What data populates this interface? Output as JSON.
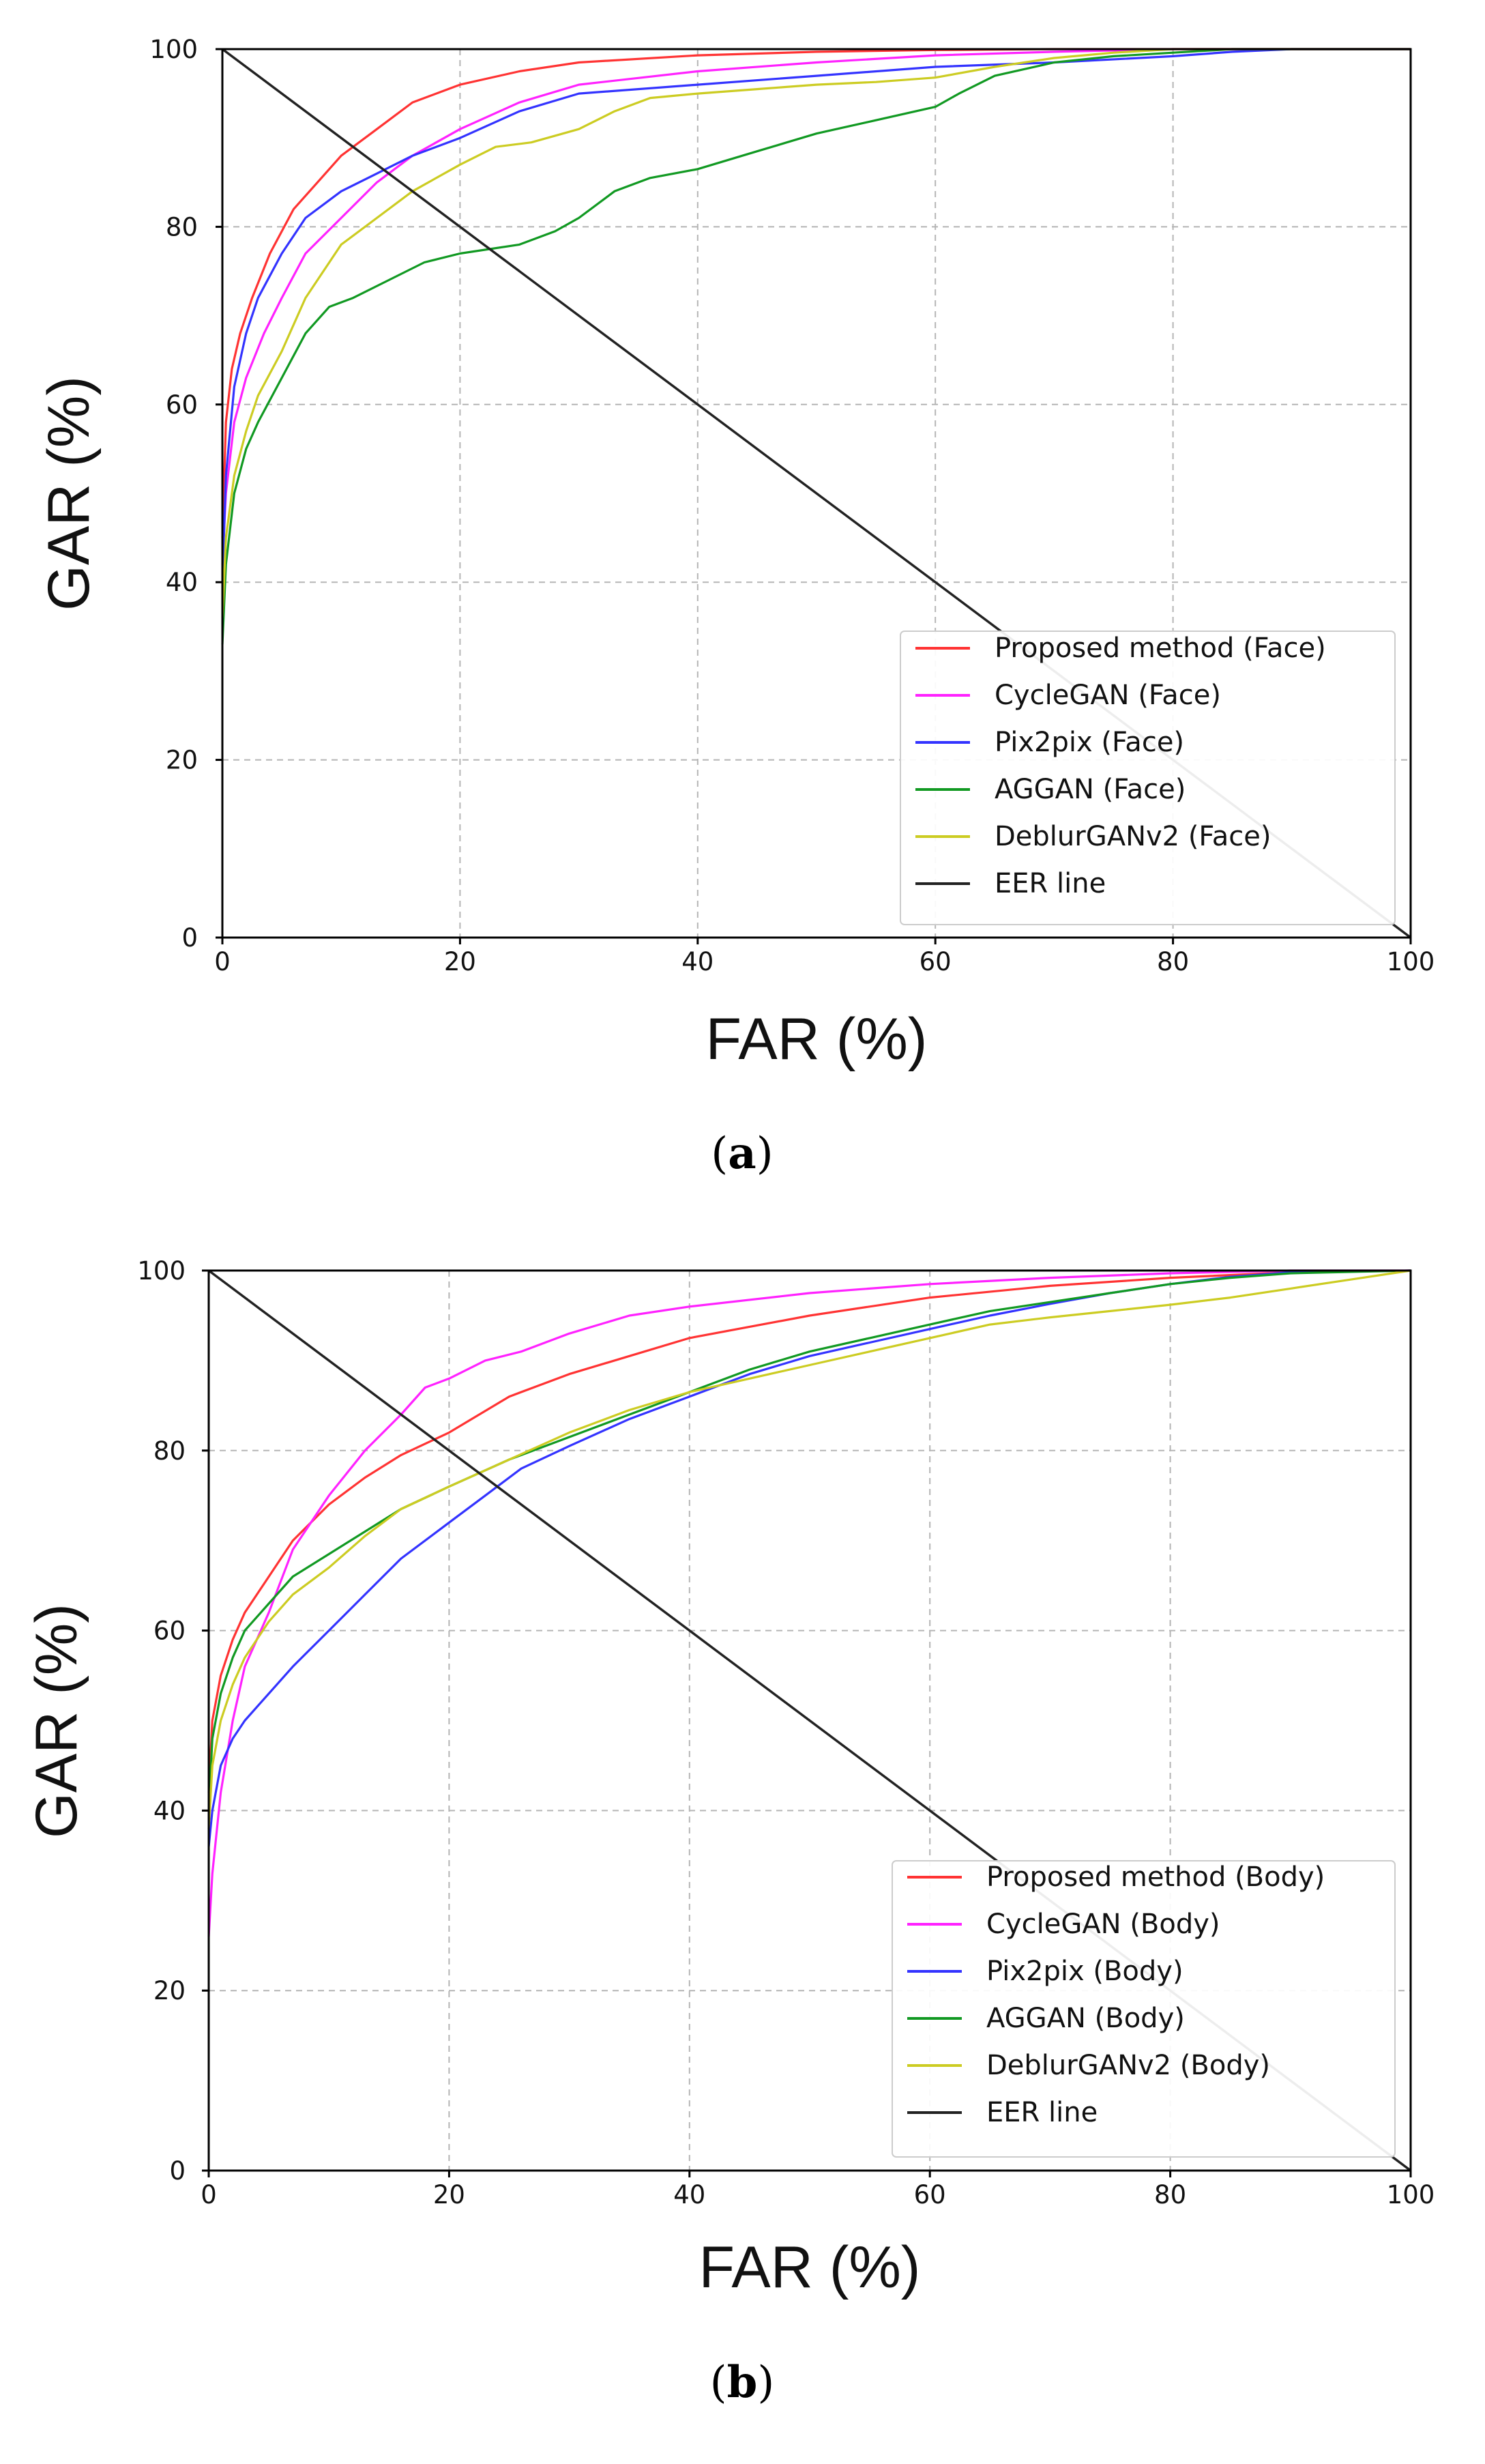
{
  "chart_data": [
    {
      "type": "line",
      "caption_open": "(",
      "caption_letter": "a",
      "caption_close": ")",
      "xlabel": "FAR (%)",
      "ylabel": "GAR (%)",
      "xlim": [
        0,
        100
      ],
      "ylim": [
        0,
        100
      ],
      "grid": true,
      "xticks": [
        "0",
        "20",
        "40",
        "60",
        "80",
        "100"
      ],
      "yticks": [
        "0",
        "20",
        "40",
        "60",
        "80",
        "100"
      ],
      "legend_position": "lower-right",
      "series": [
        {
          "name": "Proposed method (Face)",
          "color": "#ff3333",
          "x": [
            0,
            0.3,
            0.8,
            1.5,
            2.5,
            4,
            6,
            8,
            10,
            13,
            16,
            20,
            25,
            30,
            40,
            50,
            60,
            70,
            80,
            90,
            100
          ],
          "y": [
            45,
            58,
            64,
            68,
            72,
            77,
            82,
            85,
            88,
            91,
            94,
            96,
            97.5,
            98.5,
            99.3,
            99.7,
            99.9,
            100,
            100,
            100,
            100
          ]
        },
        {
          "name": "CycleGAN (Face)",
          "color": "#ff22ff",
          "x": [
            0,
            0.3,
            1,
            2,
            3.5,
            5,
            7,
            10,
            13,
            16,
            20,
            25,
            30,
            40,
            50,
            60,
            70,
            80,
            90,
            100
          ],
          "y": [
            42,
            50,
            58,
            63,
            68,
            72,
            77,
            81,
            85,
            88,
            91,
            94,
            96,
            97.5,
            98.5,
            99.3,
            99.7,
            100,
            100,
            100
          ]
        },
        {
          "name": "Pix2pix (Face)",
          "color": "#3333ff",
          "x": [
            0,
            0.3,
            1,
            2,
            3,
            5,
            7,
            10,
            13,
            16,
            20,
            25,
            30,
            40,
            50,
            60,
            70,
            80,
            85,
            90,
            100
          ],
          "y": [
            40,
            52,
            62,
            68,
            72,
            77,
            81,
            84,
            86,
            88,
            90,
            93,
            95,
            96,
            97,
            98,
            98.5,
            99.2,
            99.7,
            100,
            100
          ]
        },
        {
          "name": "AGGAN (Face)",
          "color": "#119922",
          "x": [
            0,
            0.3,
            1,
            2,
            3,
            5,
            7,
            9,
            11,
            14,
            17,
            20,
            25,
            28,
            30,
            33,
            36,
            40,
            45,
            50,
            55,
            60,
            62,
            65,
            70,
            75,
            80,
            85,
            90,
            100
          ],
          "y": [
            33,
            42,
            50,
            55,
            58,
            63,
            68,
            71,
            72,
            74,
            76,
            77,
            78,
            79.5,
            81,
            84,
            85.5,
            86.5,
            88.5,
            90.5,
            92,
            93.5,
            95,
            97,
            98.5,
            99.2,
            99.6,
            100,
            100,
            100
          ]
        },
        {
          "name": "DeblurGANv2 (Face)",
          "color": "#cccc22",
          "x": [
            0,
            0.3,
            1,
            2,
            3,
            5,
            7,
            10,
            13,
            16,
            20,
            23,
            26,
            30,
            33,
            36,
            40,
            45,
            50,
            55,
            60,
            65,
            70,
            75,
            80,
            90,
            100
          ],
          "y": [
            36,
            45,
            52,
            57,
            61,
            66,
            72,
            78,
            81,
            84,
            87,
            89,
            89.5,
            91,
            93,
            94.5,
            95,
            95.5,
            96,
            96.3,
            96.8,
            98,
            99,
            99.6,
            100,
            100,
            100
          ]
        },
        {
          "name": "EER line",
          "color": "#222222",
          "x": [
            0,
            100
          ],
          "y": [
            100,
            0
          ]
        }
      ]
    },
    {
      "type": "line",
      "caption_open": "(",
      "caption_letter": "b",
      "caption_close": ")",
      "xlabel": "FAR (%)",
      "ylabel": "GAR (%)",
      "xlim": [
        0,
        100
      ],
      "ylim": [
        0,
        100
      ],
      "grid": true,
      "xticks": [
        "0",
        "20",
        "40",
        "60",
        "80",
        "100"
      ],
      "yticks": [
        "0",
        "20",
        "40",
        "60",
        "80",
        "100"
      ],
      "legend_position": "lower-right",
      "series": [
        {
          "name": "Proposed method (Body)",
          "color": "#ff3333",
          "x": [
            0,
            0.3,
            1,
            2,
            3,
            5,
            7,
            10,
            13,
            16,
            20,
            25,
            30,
            35,
            40,
            50,
            60,
            70,
            80,
            90,
            100
          ],
          "y": [
            42,
            50,
            55,
            59,
            62,
            66,
            70,
            74,
            77,
            79.5,
            82,
            86,
            88.5,
            90.5,
            92.5,
            95,
            97,
            98.3,
            99.2,
            99.8,
            100
          ]
        },
        {
          "name": "CycleGAN (Body)",
          "color": "#ff22ff",
          "x": [
            0,
            0.3,
            1,
            2,
            3,
            5,
            7,
            10,
            13,
            16,
            18,
            20,
            23,
            26,
            30,
            35,
            40,
            50,
            60,
            70,
            80,
            90,
            100
          ],
          "y": [
            26,
            33,
            42,
            50,
            56,
            62,
            69,
            75,
            80,
            84,
            87,
            88,
            90,
            91,
            93,
            95,
            96,
            97.5,
            98.5,
            99.2,
            99.7,
            100,
            100
          ]
        },
        {
          "name": "Pix2pix (Body)",
          "color": "#3333ff",
          "x": [
            0,
            0.3,
            1,
            2,
            3,
            5,
            7,
            10,
            13,
            16,
            20,
            23,
            26,
            30,
            35,
            40,
            45,
            50,
            55,
            60,
            65,
            70,
            75,
            80,
            85,
            90,
            100
          ],
          "y": [
            36,
            40,
            45,
            48,
            50,
            53,
            56,
            60,
            64,
            68,
            72,
            75,
            78,
            80.5,
            83.5,
            86,
            88.5,
            90.5,
            92,
            93.5,
            95,
            96.3,
            97.5,
            98.5,
            99.3,
            99.8,
            100
          ]
        },
        {
          "name": "AGGAN (Body)",
          "color": "#119922",
          "x": [
            0,
            0.3,
            1,
            2,
            3,
            5,
            7,
            10,
            13,
            16,
            20,
            25,
            30,
            35,
            40,
            45,
            50,
            55,
            60,
            65,
            70,
            75,
            80,
            85,
            90,
            100
          ],
          "y": [
            40,
            48,
            53,
            57,
            60,
            63,
            66,
            68.5,
            71,
            73.5,
            76,
            79,
            81.5,
            84,
            86.5,
            89,
            91,
            92.5,
            94,
            95.5,
            96.5,
            97.5,
            98.5,
            99.2,
            99.7,
            100
          ]
        },
        {
          "name": "DeblurGANv2 (Body)",
          "color": "#cccc22",
          "x": [
            0,
            0.3,
            1,
            2,
            3,
            5,
            7,
            10,
            13,
            16,
            20,
            25,
            30,
            35,
            40,
            45,
            50,
            55,
            60,
            65,
            70,
            75,
            80,
            85,
            90,
            95,
            100
          ],
          "y": [
            38,
            45,
            50,
            54,
            57,
            61,
            64,
            67,
            70.5,
            73.5,
            76,
            79,
            82,
            84.5,
            86.5,
            88,
            89.5,
            91,
            92.5,
            94,
            94.8,
            95.5,
            96.2,
            97,
            98,
            99,
            100
          ]
        },
        {
          "name": "EER line",
          "color": "#222222",
          "x": [
            0,
            100
          ],
          "y": [
            100,
            0
          ]
        }
      ]
    }
  ]
}
